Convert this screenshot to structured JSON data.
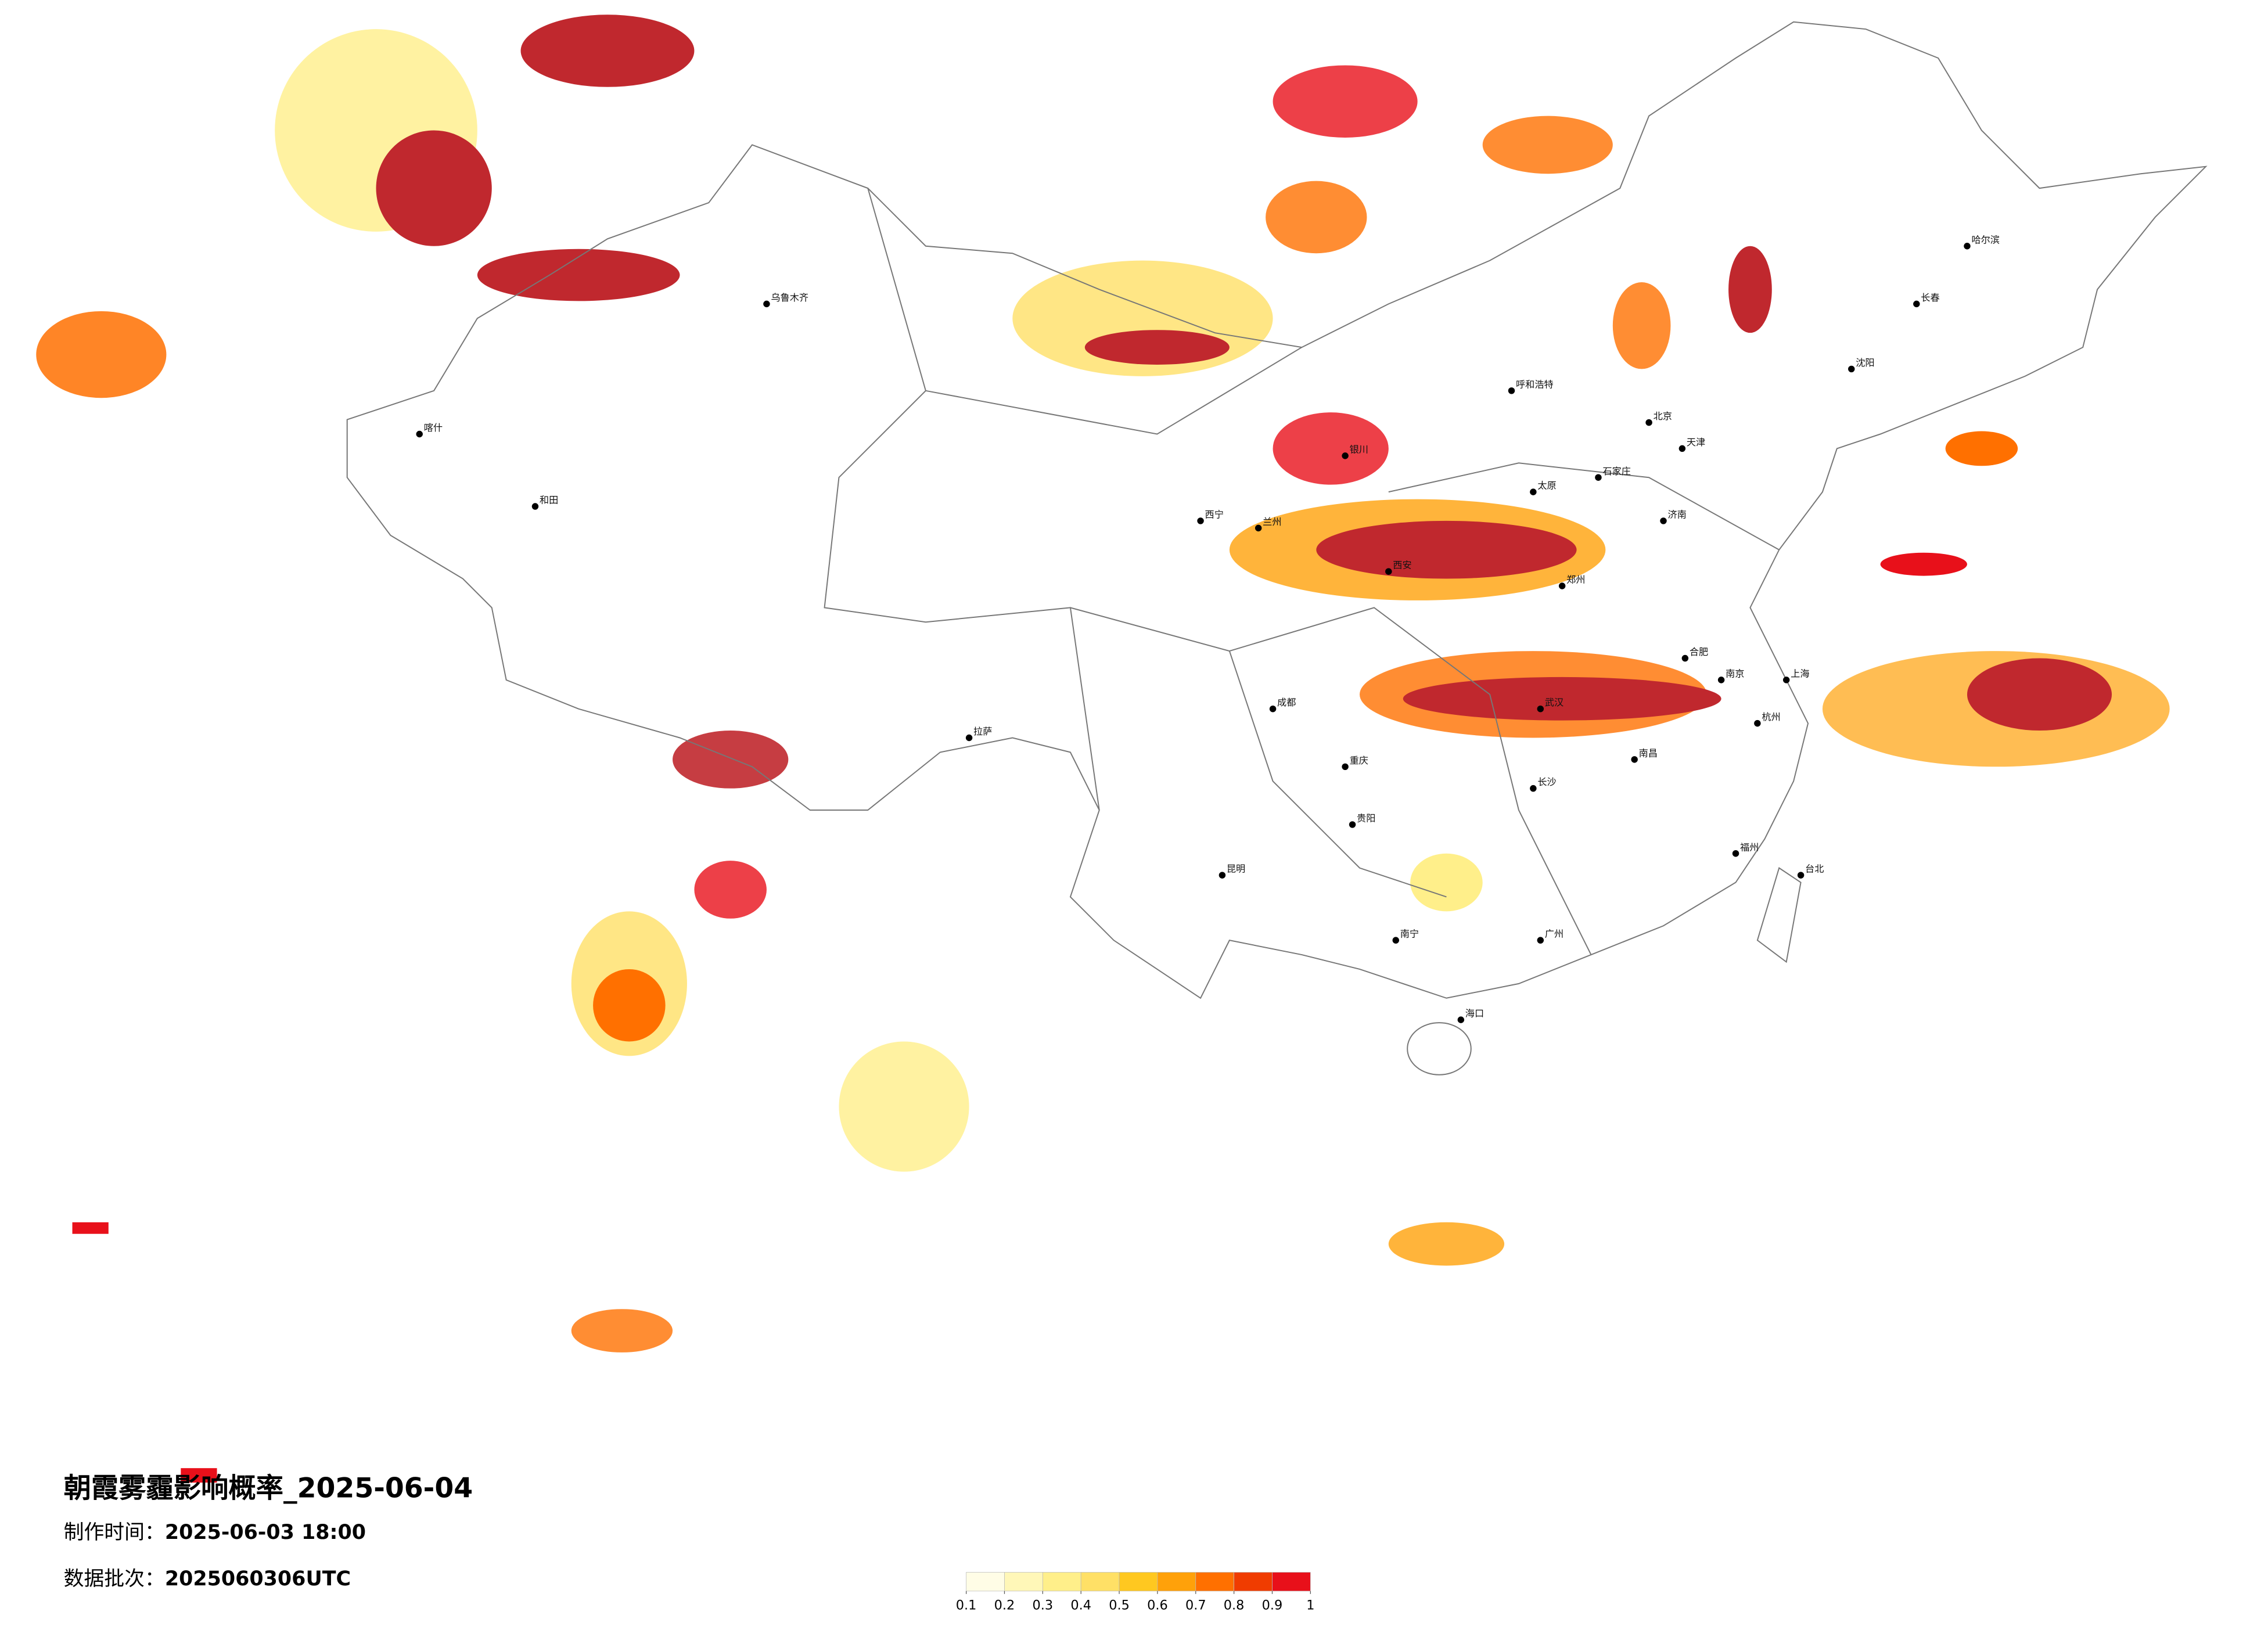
{
  "header": {
    "title": "朝霞雾霾影响概率_2025-06-04",
    "made_label": "制作时间：",
    "made_value": "2025-06-03 18:00",
    "batch_label": "数据批次：",
    "batch_value": "2025060306UTC"
  },
  "legend": {
    "ticks": [
      0.1,
      0.2,
      0.3,
      0.4,
      0.5,
      0.6,
      0.7,
      0.8,
      0.9,
      1
    ],
    "colors": [
      "#fffde6",
      "#fff7b8",
      "#ffef8a",
      "#ffe066",
      "#ffc820",
      "#ffa10a",
      "#ff7000",
      "#f03c00",
      "#e8101a",
      "#c0282e"
    ]
  },
  "cities": [
    "北京",
    "天津",
    "上海",
    "南京",
    "杭州",
    "武汉",
    "长沙",
    "广州",
    "成都",
    "重庆",
    "西安",
    "郑州",
    "济南",
    "沈阳",
    "长春",
    "哈尔滨",
    "呼和浩特",
    "兰州",
    "西宁",
    "银川",
    "乌鲁木齐",
    "拉萨",
    "昆明",
    "贵阳",
    "南宁",
    "福州",
    "南昌",
    "合肥",
    "太原",
    "石家庄",
    "海口",
    "台北",
    "喀什",
    "和田"
  ]
}
